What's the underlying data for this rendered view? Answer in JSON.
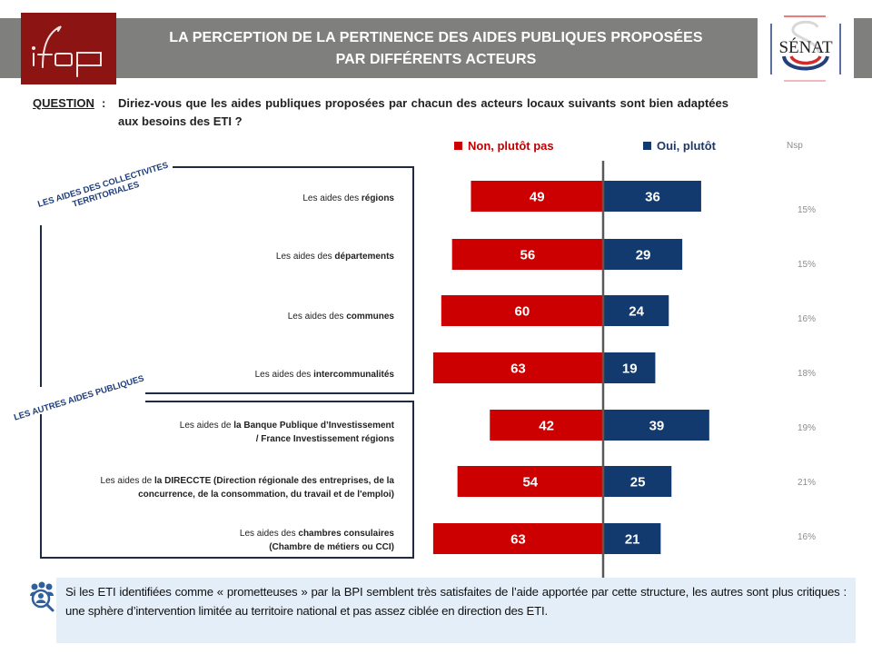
{
  "header": {
    "title_line1": "LA PERCEPTION DE LA PERTINENCE DES AIDES PUBLIQUES PROPOSÉES",
    "title_line2": "PAR DIFFÉRENTS ACTEURS",
    "logo_left": "ifop",
    "logo_right": "SÉNAT"
  },
  "question": {
    "label": "QUESTION",
    "colon": ":",
    "text": "Diriez-vous que les aides publiques proposées par chacun des acteurs locaux suivants sont bien adaptées aux besoins des ETI ?"
  },
  "groups": [
    {
      "label_line1": "LES AIDES DES COLLECTIVITES",
      "label_line2": "TERRITORIALES"
    },
    {
      "label_line1": "LES AUTRES AIDES PUBLIQUES",
      "label_line2": ""
    }
  ],
  "rows": [
    {
      "prefix": "Les aides des ",
      "bold": "régions",
      "line2": ""
    },
    {
      "prefix": "Les aides des  ",
      "bold": "départements",
      "line2": ""
    },
    {
      "prefix": "Les aides des  ",
      "bold": "communes",
      "line2": ""
    },
    {
      "prefix": "Les aides des ",
      "bold": "intercommunalités",
      "line2": ""
    },
    {
      "prefix": "Les aides de ",
      "bold": "la Banque Publique d’Investissement",
      "line2": "/ France Investissement régions"
    },
    {
      "prefix": "Les aides de ",
      "bold": "la DIRECCTE  (Direction régionale des entreprises, de la",
      "line2": "concurrence, de la consommation, du travail et de l'emploi)"
    },
    {
      "prefix": "Les aides des ",
      "bold": "chambres consulaires",
      "line2": "(Chambre de métiers ou CCI)"
    }
  ],
  "colors": {
    "non": "#cc0000",
    "oui": "#123a6e",
    "axis": "#595959",
    "header_band": "#7f7f7e",
    "ifop_red": "#8c1513"
  },
  "chart_data": {
    "type": "bar",
    "orientation": "horizontal-diverging",
    "title": "LA PERCEPTION DE LA PERTINENCE DES AIDES PUBLIQUES PROPOSÉES PAR DIFFÉRENTS ACTEURS",
    "categories": [
      "Les aides des régions",
      "Les aides des départements",
      "Les aides des communes",
      "Les aides des intercommunalités",
      "Les aides de la Banque Publique d’Investissement / France Investissement régions",
      "Les aides de la DIRECCTE (Direction régionale des entreprises, de la concurrence, de la consommation, du travail et de l'emploi)",
      "Les aides des chambres consulaires (Chambre de métiers ou CCI)"
    ],
    "series": [
      {
        "name": "Non, plutôt pas",
        "direction": "left",
        "values": [
          49,
          56,
          60,
          63,
          42,
          54,
          63
        ]
      },
      {
        "name": "Oui, plutôt",
        "direction": "right",
        "values": [
          36,
          29,
          24,
          19,
          39,
          25,
          21
        ]
      }
    ],
    "nsp": {
      "name": "Nsp",
      "values": [
        "15%",
        "15%",
        "16%",
        "18%",
        "19%",
        "21%",
        "16%"
      ]
    },
    "xlabel": "",
    "ylabel": "",
    "xlim": [
      -70,
      70
    ],
    "grid": false,
    "legend_position": "top"
  },
  "callout": {
    "icon": "people-search-icon",
    "text": "Si les ETI identifiées comme « prometteuses » par la BPI semblent très satisfaites de l’aide apportée par cette structure, les autres sont plus critiques : une sphère d’intervention limitée au territoire national et pas assez ciblée en direction des ETI."
  }
}
